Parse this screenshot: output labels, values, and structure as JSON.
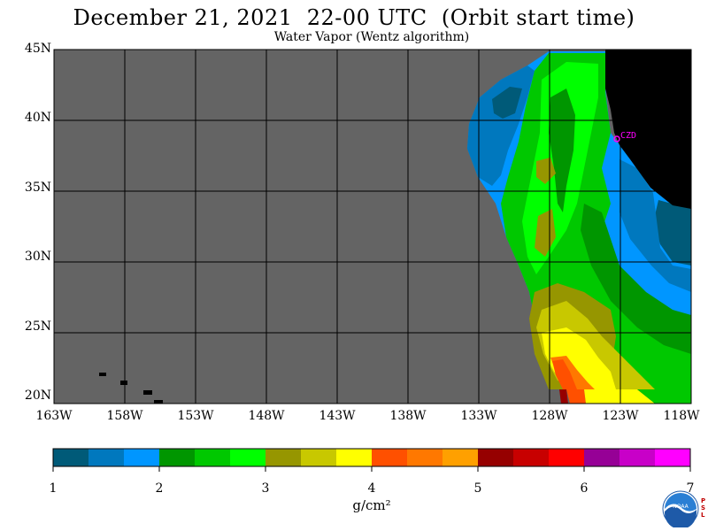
{
  "title": "December 21, 2021  22-00 UTC  (Orbit start time)",
  "subtitle": "Water Vapor (Wentz algorithm)",
  "map": {
    "lat_labels": [
      "45N",
      "40N",
      "35N",
      "30N",
      "25N",
      "20N"
    ],
    "lon_labels": [
      "163W",
      "158W",
      "153W",
      "148W",
      "143W",
      "138W",
      "133W",
      "128W",
      "123W",
      "118W"
    ],
    "station_label": "CZD",
    "colors": {
      "no_data": "#646464",
      "land": "#000000",
      "grid": "#000000",
      "station": "#ff00ff"
    }
  },
  "colorbar": {
    "labels": [
      "1",
      "2",
      "3",
      "4",
      "5",
      "6",
      "7"
    ],
    "units": "g/cm²",
    "colors": [
      "#005a78",
      "#0078be",
      "#0096ff",
      "#009600",
      "#00c800",
      "#00ff00",
      "#969600",
      "#c8c800",
      "#ffff00",
      "#ff5000",
      "#ff7800",
      "#ffa000",
      "#960000",
      "#c80000",
      "#ff0000",
      "#960096",
      "#c800c8",
      "#ff00ff"
    ]
  },
  "logo": {
    "text": "NOAA",
    "psl_text": "PSL"
  }
}
